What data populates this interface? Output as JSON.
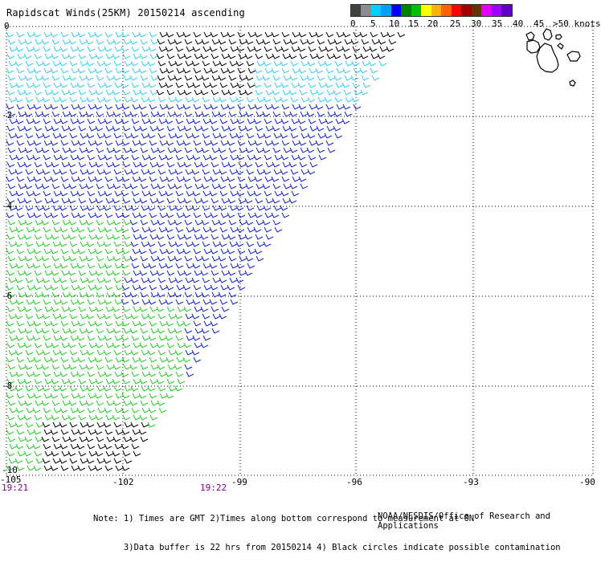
{
  "title": "Rapidscat Winds(25KM) 20150214 ascending",
  "legend": {
    "colors": [
      "#404040",
      "#8c8c8c",
      "#00d0ff",
      "#00a0ff",
      "#0000ff",
      "#008000",
      "#00c000",
      "#ffff00",
      "#ffb000",
      "#ff6000",
      "#ff0000",
      "#a00000",
      "#663300",
      "#e000ff",
      "#a000ff",
      "#6000c0"
    ],
    "labels": [
      "0",
      "5",
      "10",
      "15",
      "20",
      "25",
      "30",
      "35",
      "40",
      "45",
      ">50 knots"
    ]
  },
  "lat_labels": [
    "0",
    "-2",
    "-4",
    "-6",
    "-8",
    "-10"
  ],
  "lon_labels": [
    "-105",
    "-102",
    "-99",
    "-96",
    "-93",
    "-90"
  ],
  "times": [
    "19:21",
    "19:22"
  ],
  "notes": [
    "Note: 1) Times are GMT 2)Times along bottom correspond to measurement at 0N",
    "      3)Data buffer is 22 hrs from 20150214 4) Black circles indicate possible contamination"
  ],
  "credit": "NOAA/NESDIS/Office of Research and Applications",
  "wind_colors": {
    "cyan": "#33ccee",
    "blue": "#1020c8",
    "green": "#22cc22",
    "black": "#000000"
  }
}
